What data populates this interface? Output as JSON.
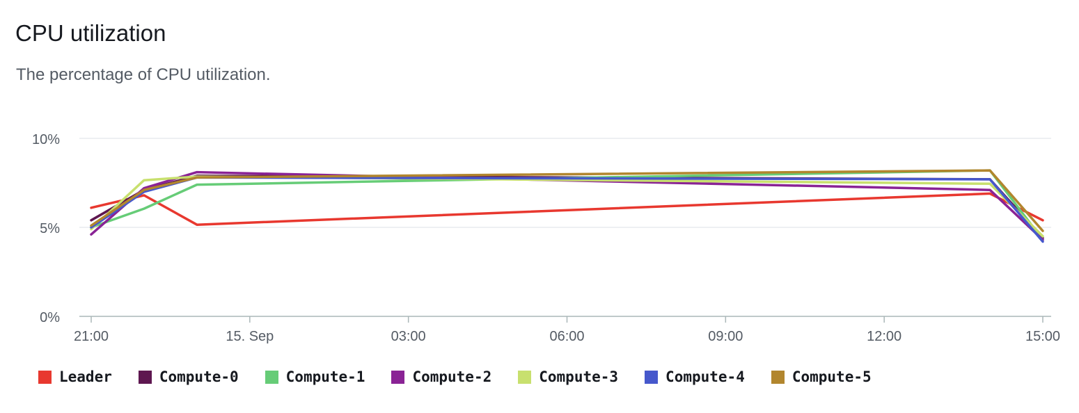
{
  "widget": {
    "title": "CPU utilization",
    "subtitle": "The percentage of CPU utilization."
  },
  "chart_data": {
    "type": "line",
    "title": "CPU utilization",
    "subtitle": "The percentage of CPU utilization.",
    "xlabel": "",
    "ylabel": "",
    "x_ticks": [
      "21:00",
      "15. Sep",
      "03:00",
      "06:00",
      "09:00",
      "12:00",
      "15:00"
    ],
    "x_tick_hours": [
      21,
      24,
      27,
      30,
      33,
      36,
      39
    ],
    "y_ticks": [
      "0%",
      "5%",
      "10%"
    ],
    "y_tick_values": [
      0,
      5,
      10
    ],
    "ylim": [
      0,
      10
    ],
    "xlim_hours": [
      21,
      39
    ],
    "grid": "horizontal",
    "legend_position": "bottom",
    "x_unit": "hours since 00:00 on 14 Sep",
    "series": [
      {
        "name": "Leader",
        "color": "#e8382f",
        "x": [
          21,
          22,
          23,
          38,
          39
        ],
        "y": [
          6.1,
          6.8,
          5.15,
          6.9,
          5.4
        ]
      },
      {
        "name": "Compute-0",
        "color": "#5e1750",
        "x": [
          21,
          22,
          23,
          38,
          39
        ],
        "y": [
          5.4,
          7.1,
          7.9,
          7.7,
          4.4
        ]
      },
      {
        "name": "Compute-1",
        "color": "#66cc77",
        "x": [
          21,
          22,
          23,
          38,
          39
        ],
        "y": [
          5.0,
          6.05,
          7.4,
          8.2,
          4.3
        ]
      },
      {
        "name": "Compute-2",
        "color": "#8a2395",
        "x": [
          21,
          22,
          23,
          38,
          39
        ],
        "y": [
          4.6,
          7.2,
          8.1,
          7.1,
          4.3
        ]
      },
      {
        "name": "Compute-3",
        "color": "#c8e06e",
        "x": [
          21,
          22,
          23,
          38,
          39
        ],
        "y": [
          4.9,
          7.65,
          7.85,
          7.45,
          4.5
        ]
      },
      {
        "name": "Compute-4",
        "color": "#4658cc",
        "x": [
          21,
          22,
          23,
          38,
          39
        ],
        "y": [
          5.0,
          7.0,
          7.8,
          7.7,
          4.2
        ]
      },
      {
        "name": "Compute-5",
        "color": "#b2862e",
        "x": [
          21,
          22,
          23,
          38,
          39
        ],
        "y": [
          5.1,
          7.1,
          7.8,
          8.2,
          4.8
        ]
      }
    ]
  }
}
